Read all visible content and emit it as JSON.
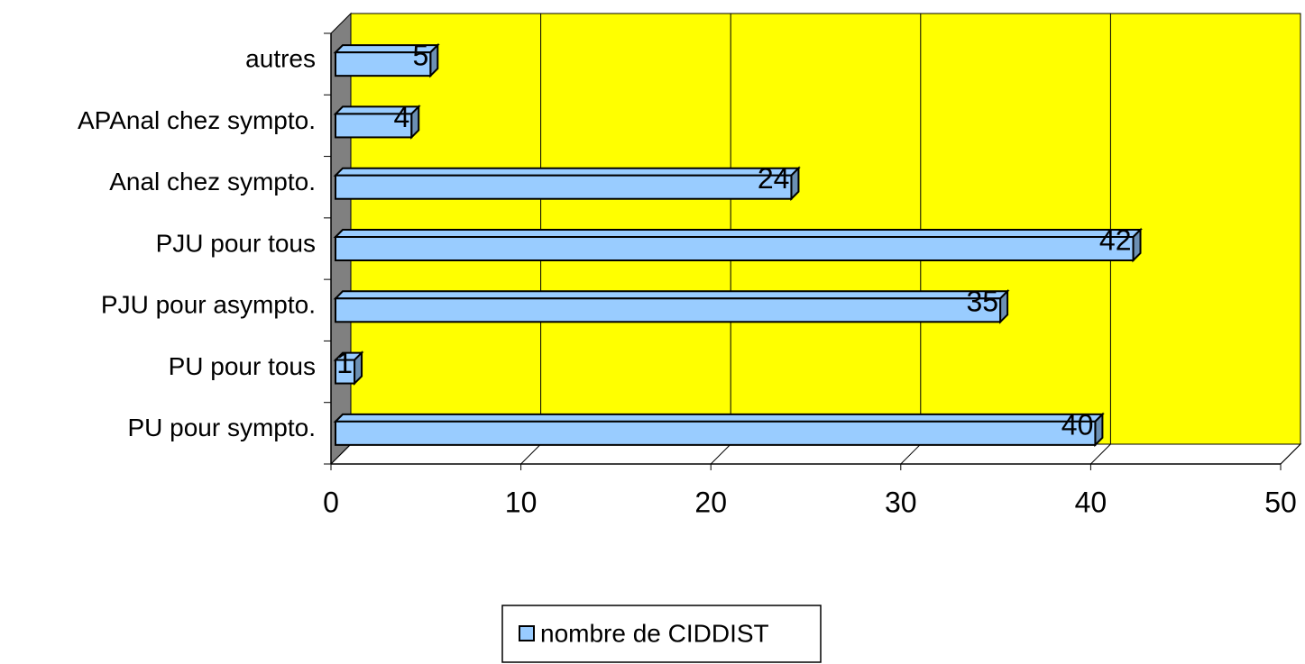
{
  "chart_data": {
    "type": "bar",
    "orientation": "horizontal",
    "categories": [
      "PU pour sympto.",
      "PU pour tous",
      "PJU pour asympto.",
      "PJU pour tous",
      "Anal chez sympto.",
      "APAnal chez sympto.",
      "autres"
    ],
    "series": [
      {
        "name": "nombre de CIDDIST",
        "color": "#99ccff",
        "values": [
          40,
          1,
          35,
          42,
          24,
          4,
          5
        ]
      }
    ],
    "xlim": [
      0,
      50
    ],
    "xticks": [
      0,
      10,
      20,
      30,
      40,
      50
    ],
    "grid": true,
    "legend": "bottom",
    "wall_color": "#ffff00"
  }
}
